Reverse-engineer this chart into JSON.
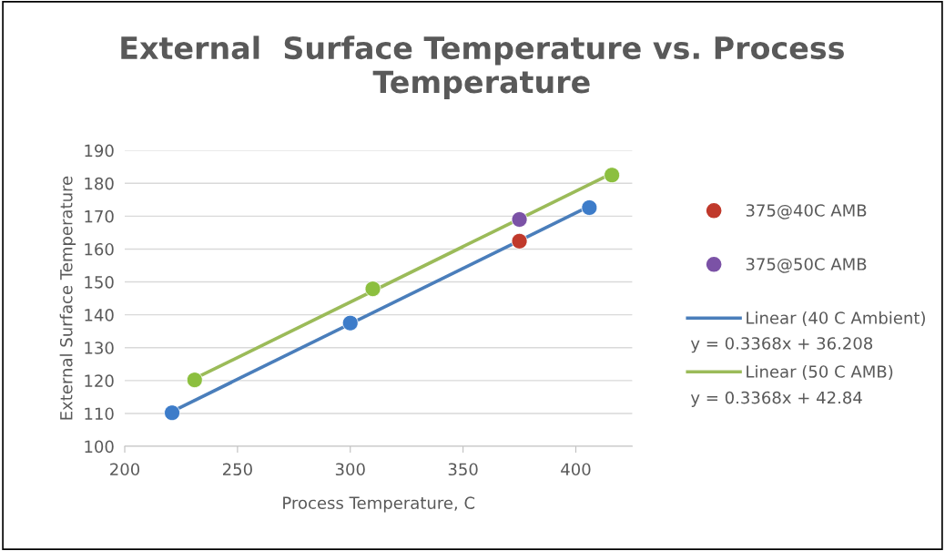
{
  "chart_data": {
    "type": "scatter",
    "title": "External  Surface Temperature vs. Process Temperature",
    "xlabel": "Process Temperature, C",
    "ylabel": "External Surface Temperature",
    "xlim": [
      200,
      425
    ],
    "xticks": [
      200,
      250,
      300,
      350,
      400
    ],
    "ylim": [
      100,
      190
    ],
    "yticks": [
      100,
      110,
      120,
      130,
      140,
      150,
      160,
      170,
      180,
      190
    ],
    "grid": "y",
    "legend": "right",
    "series": [
      {
        "marker": "circle",
        "color": "#3d7cc9",
        "x": [
          221,
          300,
          406
        ],
        "values": [
          110.2,
          137.5,
          172.6
        ]
      },
      {
        "marker": "circle",
        "color": "#8cbf3f",
        "x": [
          231,
          310,
          416
        ],
        "values": [
          120.2,
          147.9,
          182.5
        ]
      },
      {
        "name": "375@40C AMB",
        "marker": "circle",
        "color": "#c0392b",
        "x": [
          375
        ],
        "values": [
          162.4
        ]
      },
      {
        "name": "375@50C AMB",
        "marker": "circle",
        "color": "#7b52a6",
        "x": [
          375
        ],
        "values": [
          169.0
        ]
      },
      {
        "name": "Linear (40 C Ambient)",
        "type": "line",
        "marker": "none",
        "color": "#4a7ebb",
        "x": [
          221,
          406
        ],
        "values": [
          110.6,
          173.0
        ]
      },
      {
        "name": "Linear (50 C AMB)",
        "type": "line",
        "marker": "none",
        "color": "#9bbb59",
        "x": [
          231,
          416
        ],
        "values": [
          120.6,
          183.0
        ]
      }
    ],
    "annotations": [
      "y = 0.3368x + 36.208",
      "y = 0.3368x + 42.84"
    ]
  }
}
